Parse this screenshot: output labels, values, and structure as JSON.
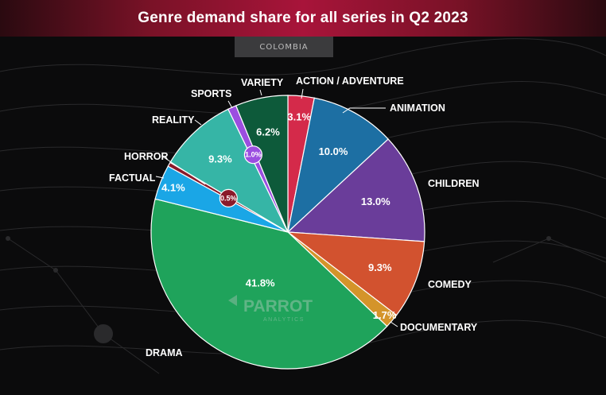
{
  "header": {
    "title": "Genre demand share for all series in Q2 2023",
    "subtitle": "COLOMBIA"
  },
  "watermark": {
    "brand": "PARROT",
    "tagline": "ANALYTICS"
  },
  "chart_data": {
    "type": "pie",
    "title": "Genre demand share for all series in Q2 2023",
    "subtitle": "COLOMBIA",
    "start_angle_deg": 0,
    "direction": "clockwise",
    "legend": "none",
    "slices": [
      {
        "name": "ACTION / ADVENTURE",
        "value": 3.1,
        "label": "3.1%",
        "color": "#d42a4a"
      },
      {
        "name": "ANIMATION",
        "value": 10.0,
        "label": "10.0%",
        "color": "#1d6fa3"
      },
      {
        "name": "CHILDREN",
        "value": 13.0,
        "label": "13.0%",
        "color": "#6a3d9a"
      },
      {
        "name": "COMEDY",
        "value": 9.3,
        "label": "9.3%",
        "color": "#d2522f"
      },
      {
        "name": "DOCUMENTARY",
        "value": 1.7,
        "label": "1.7%",
        "color": "#d4942a"
      },
      {
        "name": "DRAMA",
        "value": 41.8,
        "label": "41.8%",
        "color": "#1fa35b"
      },
      {
        "name": "FACTUAL",
        "value": 4.1,
        "label": "4.1%",
        "color": "#1aa6e6"
      },
      {
        "name": "HORROR",
        "value": 0.5,
        "label": "0.5%",
        "color": "#8a1a2a"
      },
      {
        "name": "REALITY",
        "value": 9.3,
        "label": "9.3%",
        "color": "#36b5a6"
      },
      {
        "name": "SPORTS",
        "value": 1.0,
        "label": "1.0%",
        "color": "#9b4ee0"
      },
      {
        "name": "VARIETY",
        "value": 6.2,
        "label": "6.2%",
        "color": "#0d5a3a"
      }
    ]
  }
}
